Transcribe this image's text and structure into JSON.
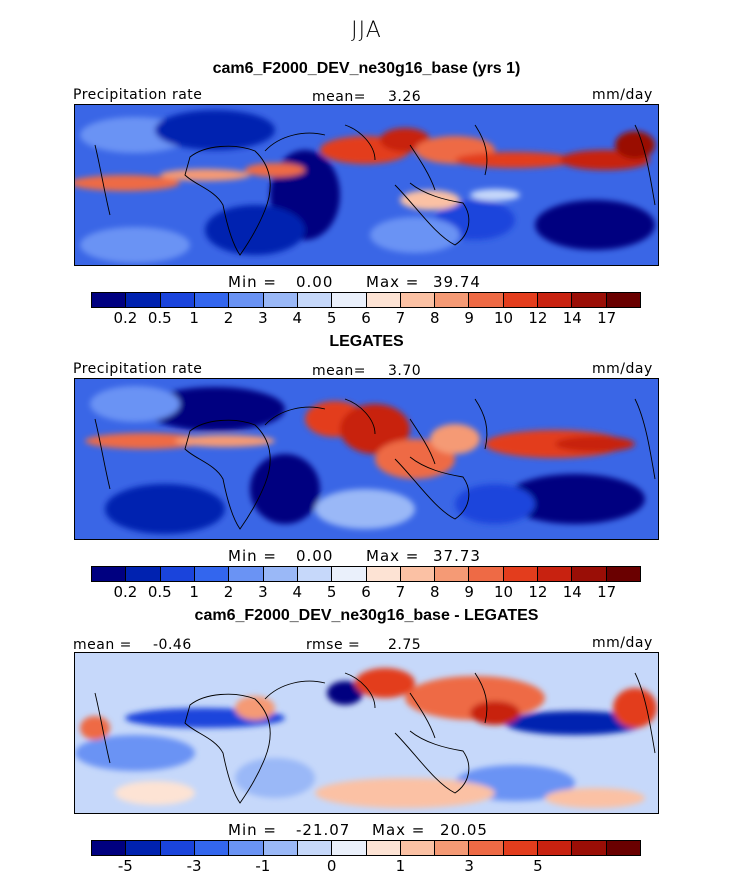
{
  "season": "JJA",
  "panels": [
    {
      "title": "cam6_F2000_DEV_ne30g16_base (yrs 1)",
      "left_label": "Precipitation rate",
      "center_label": "mean=",
      "center_value": "3.26",
      "right_label": "mm/day",
      "min_label": "Min =",
      "min_value": "0.00",
      "max_label": "Max =",
      "max_value": "39.74"
    },
    {
      "title": "LEGATES",
      "left_label": "Precipitation rate",
      "center_label": "mean=",
      "center_value": "3.70",
      "right_label": "mm/day",
      "min_label": "Min =",
      "min_value": "0.00",
      "max_label": "Max =",
      "max_value": "37.73"
    },
    {
      "title": "cam6_F2000_DEV_ne30g16_base - LEGATES",
      "left_label": "mean =",
      "left_value": "-0.46",
      "center_label": "rmse =",
      "center_value": "2.75",
      "right_label": "mm/day",
      "min_label": "Min =",
      "min_value": "-21.07",
      "max_label": "Max =",
      "max_value": "20.05"
    }
  ],
  "colorbar_abs": {
    "colors": [
      "#000080",
      "#0022b0",
      "#1a44dc",
      "#3366ee",
      "#6a93f4",
      "#9ab8f7",
      "#c6d8fa",
      "#eaf0fb",
      "#fde3d4",
      "#fbc1a4",
      "#f59a75",
      "#ee6a45",
      "#e33d1d",
      "#c82210",
      "#9a0e06",
      "#6a0000"
    ],
    "ticks": [
      "0.2",
      "0.5",
      "1",
      "2",
      "3",
      "4",
      "5",
      "6",
      "7",
      "8",
      "9",
      "10",
      "12",
      "14",
      "17"
    ]
  },
  "colorbar_diff": {
    "colors": [
      "#000080",
      "#0022b0",
      "#1a44dc",
      "#3366ee",
      "#6a93f4",
      "#9ab8f7",
      "#c6d8fa",
      "#eaf0fb",
      "#fde3d4",
      "#fbc1a4",
      "#f59a75",
      "#ee6a45",
      "#e33d1d",
      "#c82210",
      "#9a0e06",
      "#6a0000"
    ],
    "ticks": [
      "-5",
      "-3",
      "-1",
      "0",
      "1",
      "3",
      "5"
    ]
  }
}
